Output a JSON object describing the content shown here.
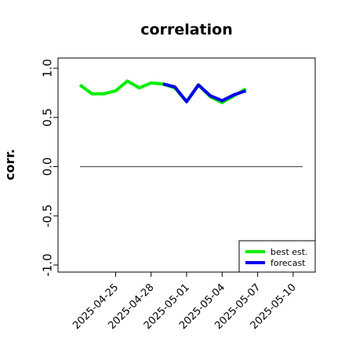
{
  "chart_data": {
    "type": "line",
    "title": "correlation",
    "xlabel": "",
    "ylabel": "corr.",
    "ylim": [
      -1.0,
      1.0
    ],
    "y_ticks": [
      -1.0,
      -0.5,
      0.0,
      0.5,
      1.0
    ],
    "y_tick_labels": [
      "-1.0",
      "-0.5",
      "0.0",
      "0.5",
      "1.0"
    ],
    "x_ticks": [
      "2025-04-25",
      "2025-04-28",
      "2025-05-01",
      "2025-05-04",
      "2025-05-07",
      "2025-05-10"
    ],
    "x_tick_label_colors": [
      "#000000",
      "#000000",
      "#228b22",
      "#000000",
      "#000000",
      "#000000"
    ],
    "xlim": [
      "2025-04-21",
      "2025-05-11"
    ],
    "reference_line": {
      "y": 0.0,
      "color": "#555555"
    },
    "series": [
      {
        "name": "best est.",
        "color": "#00ee00",
        "points": [
          {
            "x": "2025-04-22",
            "y": 0.83
          },
          {
            "x": "2025-04-23",
            "y": 0.74
          },
          {
            "x": "2025-04-24",
            "y": 0.74
          },
          {
            "x": "2025-04-25",
            "y": 0.77
          },
          {
            "x": "2025-04-26",
            "y": 0.87
          },
          {
            "x": "2025-04-27",
            "y": 0.8
          },
          {
            "x": "2025-04-28",
            "y": 0.85
          },
          {
            "x": "2025-04-29",
            "y": 0.84
          },
          {
            "x": "2025-04-30",
            "y": 0.8
          },
          {
            "x": "2025-05-01",
            "y": 0.66
          },
          {
            "x": "2025-05-02",
            "y": 0.83
          },
          {
            "x": "2025-05-03",
            "y": 0.71
          },
          {
            "x": "2025-05-04",
            "y": 0.65
          },
          {
            "x": "2025-05-05",
            "y": 0.72
          },
          {
            "x": "2025-05-06",
            "y": 0.79
          }
        ]
      },
      {
        "name": "forecast",
        "color": "#0000ee",
        "points": [
          {
            "x": "2025-04-29",
            "y": 0.84
          },
          {
            "x": "2025-04-30",
            "y": 0.81
          },
          {
            "x": "2025-05-01",
            "y": 0.66
          },
          {
            "x": "2025-05-02",
            "y": 0.83
          },
          {
            "x": "2025-05-03",
            "y": 0.72
          },
          {
            "x": "2025-05-04",
            "y": 0.67
          },
          {
            "x": "2025-05-05",
            "y": 0.73
          },
          {
            "x": "2025-05-06",
            "y": 0.77
          }
        ]
      }
    ],
    "legend": {
      "position": "bottom-right",
      "entries": [
        "best est.",
        "forecast"
      ]
    }
  }
}
